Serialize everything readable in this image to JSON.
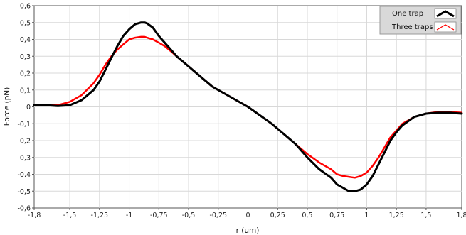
{
  "chart_data": {
    "type": "line",
    "title": "",
    "xlabel": "r (um)",
    "ylabel": "Force (pN)",
    "xlim": [
      -1.8,
      1.8
    ],
    "ylim": [
      -0.6,
      0.6
    ],
    "xticks": [
      -1.8,
      -1.5,
      -1.25,
      -1,
      -0.75,
      -0.5,
      -0.25,
      0,
      0.25,
      0.5,
      0.75,
      1,
      1.25,
      1.5,
      1.8
    ],
    "xtick_labels": [
      "-1,8",
      "-1,5",
      "-1,25",
      "-1",
      "-0,75",
      "-0,5",
      "-0,25",
      "0",
      "0,25",
      "0,5",
      "0,75",
      "1",
      "1,25",
      "1,5",
      "1,8"
    ],
    "yticks": [
      0.6,
      0.5,
      0.4,
      0.3,
      0.2,
      0.1,
      0,
      -0.1,
      -0.2,
      -0.3,
      -0.4,
      -0.5,
      -0.6
    ],
    "ytick_labels": [
      "0,6",
      "0,5",
      "0,4",
      "0,3",
      "0,2",
      "0,1",
      "0",
      "-0,1",
      "-0,2",
      "-0,3",
      "-0,4",
      "-0,5",
      "-0,6"
    ],
    "grid": true,
    "legend_position": "top-right",
    "series": [
      {
        "name": "One trap",
        "color": "#000000",
        "x": [
          -1.8,
          -1.7,
          -1.6,
          -1.5,
          -1.4,
          -1.3,
          -1.25,
          -1.2,
          -1.15,
          -1.1,
          -1.05,
          -1.0,
          -0.95,
          -0.9,
          -0.87,
          -0.85,
          -0.8,
          -0.75,
          -0.7,
          -0.65,
          -0.6,
          -0.5,
          -0.4,
          -0.3,
          -0.25,
          -0.2,
          -0.1,
          0.0,
          0.1,
          0.2,
          0.25,
          0.3,
          0.4,
          0.5,
          0.6,
          0.7,
          0.75,
          0.8,
          0.85,
          0.9,
          0.95,
          1.0,
          1.05,
          1.1,
          1.15,
          1.2,
          1.25,
          1.3,
          1.4,
          1.5,
          1.6,
          1.7,
          1.8
        ],
        "y": [
          0.01,
          0.01,
          0.005,
          0.01,
          0.04,
          0.1,
          0.15,
          0.22,
          0.29,
          0.36,
          0.42,
          0.46,
          0.49,
          0.5,
          0.5,
          0.495,
          0.47,
          0.42,
          0.38,
          0.34,
          0.3,
          0.24,
          0.18,
          0.12,
          0.1,
          0.08,
          0.04,
          0.0,
          -0.05,
          -0.1,
          -0.13,
          -0.16,
          -0.22,
          -0.3,
          -0.37,
          -0.42,
          -0.46,
          -0.48,
          -0.5,
          -0.5,
          -0.49,
          -0.46,
          -0.41,
          -0.34,
          -0.27,
          -0.2,
          -0.15,
          -0.11,
          -0.06,
          -0.04,
          -0.035,
          -0.035,
          -0.04
        ]
      },
      {
        "name": "Three traps",
        "color": "#ff0000",
        "x": [
          -1.8,
          -1.7,
          -1.6,
          -1.5,
          -1.4,
          -1.3,
          -1.25,
          -1.2,
          -1.15,
          -1.1,
          -1.05,
          -1.0,
          -0.95,
          -0.9,
          -0.87,
          -0.85,
          -0.8,
          -0.75,
          -0.7,
          -0.65,
          -0.6,
          -0.5,
          -0.4,
          -0.3,
          -0.25,
          -0.2,
          -0.1,
          0.0,
          0.1,
          0.2,
          0.25,
          0.3,
          0.4,
          0.5,
          0.6,
          0.7,
          0.75,
          0.8,
          0.85,
          0.9,
          0.95,
          1.0,
          1.05,
          1.1,
          1.15,
          1.2,
          1.25,
          1.3,
          1.4,
          1.5,
          1.6,
          1.7,
          1.8
        ],
        "y": [
          0.01,
          0.01,
          0.01,
          0.03,
          0.07,
          0.14,
          0.19,
          0.25,
          0.3,
          0.34,
          0.37,
          0.4,
          0.41,
          0.415,
          0.415,
          0.41,
          0.4,
          0.38,
          0.36,
          0.33,
          0.3,
          0.24,
          0.18,
          0.12,
          0.1,
          0.08,
          0.04,
          0.0,
          -0.05,
          -0.1,
          -0.13,
          -0.16,
          -0.22,
          -0.28,
          -0.33,
          -0.37,
          -0.4,
          -0.41,
          -0.415,
          -0.42,
          -0.41,
          -0.39,
          -0.35,
          -0.3,
          -0.24,
          -0.18,
          -0.14,
          -0.1,
          -0.06,
          -0.04,
          -0.03,
          -0.03,
          -0.035
        ]
      }
    ]
  }
}
